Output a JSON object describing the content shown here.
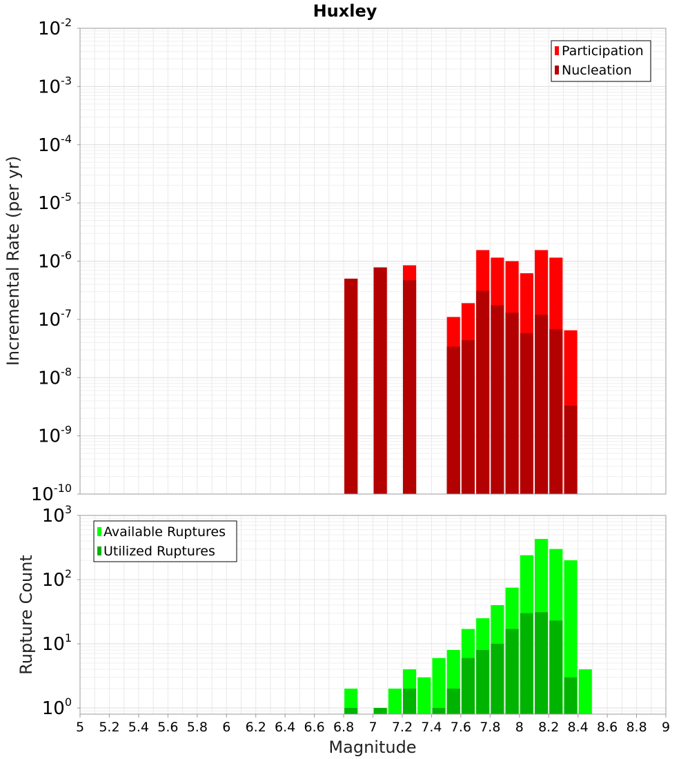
{
  "chart_data": [
    {
      "type": "bar",
      "title": "Huxley",
      "xlabel": "Magnitude",
      "ylabel": "Incremental Rate (per yr)",
      "yscale": "log",
      "xlim": [
        5,
        9
      ],
      "ylim": [
        1e-10,
        0.01
      ],
      "grid": true,
      "legend_position": "top-right",
      "series": [
        {
          "name": "Participation",
          "color": "#ff0000",
          "points": [
            {
              "x": 6.85,
              "y": 5e-07
            },
            {
              "x": 7.05,
              "y": 7.8e-07
            },
            {
              "x": 7.25,
              "y": 8.5e-07
            },
            {
              "x": 7.55,
              "y": 1.1e-07
            },
            {
              "x": 7.65,
              "y": 1.9e-07
            },
            {
              "x": 7.75,
              "y": 1.55e-06
            },
            {
              "x": 7.85,
              "y": 1.15e-06
            },
            {
              "x": 7.95,
              "y": 1e-06
            },
            {
              "x": 8.05,
              "y": 6.2e-07
            },
            {
              "x": 8.15,
              "y": 1.55e-06
            },
            {
              "x": 8.25,
              "y": 1.15e-06
            },
            {
              "x": 8.35,
              "y": 6.5e-08
            }
          ]
        },
        {
          "name": "Nucleation",
          "color": "#b30000",
          "points": [
            {
              "x": 6.85,
              "y": 5e-07
            },
            {
              "x": 7.05,
              "y": 7.8e-07
            },
            {
              "x": 7.25,
              "y": 4.7e-07
            },
            {
              "x": 7.55,
              "y": 3.4e-08
            },
            {
              "x": 7.65,
              "y": 4.4e-08
            },
            {
              "x": 7.75,
              "y": 3.1e-07
            },
            {
              "x": 7.85,
              "y": 1.75e-07
            },
            {
              "x": 7.95,
              "y": 1.3e-07
            },
            {
              "x": 8.05,
              "y": 5.8e-08
            },
            {
              "x": 8.15,
              "y": 1.2e-07
            },
            {
              "x": 8.25,
              "y": 6.8e-08
            },
            {
              "x": 8.35,
              "y": 3.3e-09
            }
          ]
        }
      ],
      "xticks": [
        "5",
        "5.2",
        "5.4",
        "5.6",
        "5.8",
        "6",
        "6.2",
        "6.4",
        "6.6",
        "6.8",
        "7",
        "7.2",
        "7.4",
        "7.6",
        "7.8",
        "8",
        "8.2",
        "8.4",
        "8.6",
        "8.8",
        "9"
      ],
      "yticks": [
        {
          "base": "10",
          "exp": "-10"
        },
        {
          "base": "10",
          "exp": "-9"
        },
        {
          "base": "10",
          "exp": "-8"
        },
        {
          "base": "10",
          "exp": "-7"
        },
        {
          "base": "10",
          "exp": "-6"
        },
        {
          "base": "10",
          "exp": "-5"
        },
        {
          "base": "10",
          "exp": "-4"
        },
        {
          "base": "10",
          "exp": "-3"
        },
        {
          "base": "10",
          "exp": "-2"
        }
      ]
    },
    {
      "type": "bar",
      "xlabel": "Magnitude",
      "ylabel": "Rupture Count",
      "yscale": "log",
      "xlim": [
        5,
        9
      ],
      "ylim": [
        0.8,
        1000
      ],
      "grid": true,
      "legend_position": "top-left",
      "series": [
        {
          "name": "Available Ruptures",
          "color": "#00ff00",
          "points": [
            {
              "x": 6.85,
              "y": 2
            },
            {
              "x": 7.05,
              "y": 1
            },
            {
              "x": 7.15,
              "y": 2
            },
            {
              "x": 7.25,
              "y": 4
            },
            {
              "x": 7.35,
              "y": 3
            },
            {
              "x": 7.45,
              "y": 6
            },
            {
              "x": 7.55,
              "y": 8
            },
            {
              "x": 7.65,
              "y": 17
            },
            {
              "x": 7.75,
              "y": 25
            },
            {
              "x": 7.85,
              "y": 40
            },
            {
              "x": 7.95,
              "y": 75
            },
            {
              "x": 8.05,
              "y": 240
            },
            {
              "x": 8.15,
              "y": 430
            },
            {
              "x": 8.25,
              "y": 300
            },
            {
              "x": 8.35,
              "y": 200
            },
            {
              "x": 8.45,
              "y": 4
            }
          ]
        },
        {
          "name": "Utilized Ruptures",
          "color": "#00b300",
          "points": [
            {
              "x": 6.85,
              "y": 1
            },
            {
              "x": 7.05,
              "y": 1
            },
            {
              "x": 7.25,
              "y": 2
            },
            {
              "x": 7.45,
              "y": 1
            },
            {
              "x": 7.55,
              "y": 2
            },
            {
              "x": 7.65,
              "y": 6
            },
            {
              "x": 7.75,
              "y": 8
            },
            {
              "x": 7.85,
              "y": 10
            },
            {
              "x": 7.95,
              "y": 17
            },
            {
              "x": 8.05,
              "y": 30
            },
            {
              "x": 8.15,
              "y": 31
            },
            {
              "x": 8.25,
              "y": 23
            },
            {
              "x": 8.35,
              "y": 3
            }
          ]
        }
      ],
      "xticks": [
        "5",
        "5.2",
        "5.4",
        "5.6",
        "5.8",
        "6",
        "6.2",
        "6.4",
        "6.6",
        "6.8",
        "7",
        "7.2",
        "7.4",
        "7.6",
        "7.8",
        "8",
        "8.2",
        "8.4",
        "8.6",
        "8.8",
        "9"
      ],
      "yticks": [
        {
          "base": "10",
          "exp": "0"
        },
        {
          "base": "10",
          "exp": "1"
        },
        {
          "base": "10",
          "exp": "2"
        },
        {
          "base": "10",
          "exp": "3"
        }
      ]
    }
  ]
}
